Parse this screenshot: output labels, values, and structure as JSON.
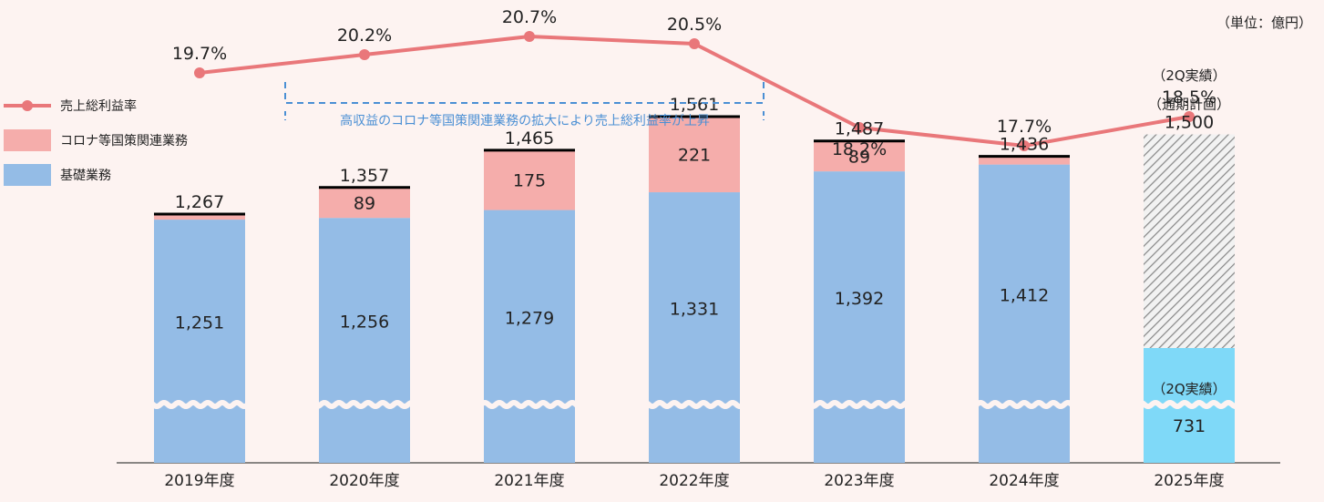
{
  "chart_data": {
    "type": "bar",
    "unit": "（単位：億円）",
    "categories": [
      "2019年度",
      "2020年度",
      "2021年度",
      "2022年度",
      "2023年度",
      "2024年度",
      "2025年度"
    ],
    "series": [
      {
        "name": "基礎業務",
        "values": [
          1251,
          1256,
          1279,
          1331,
          1392,
          1412,
          null
        ]
      },
      {
        "name": "コロナ等国策関連業務",
        "values": [
          null,
          89,
          175,
          221,
          89,
          null,
          null
        ]
      }
    ],
    "total_labels": [
      "1,267",
      "1,357",
      "1,465",
      "1,561",
      "1,487",
      "1,436",
      "1,500"
    ],
    "totals": [
      1267,
      1357,
      1465,
      1561,
      1487,
      1436,
      1500
    ],
    "base_labels": [
      "1,251",
      "1,256",
      "1,279",
      "1,331",
      "1,392",
      "1,412"
    ],
    "corona_labels": [
      "",
      "89",
      "175",
      "221",
      "89",
      "",
      ""
    ],
    "margin_line": {
      "name": "売上総利益率",
      "values": [
        19.7,
        20.2,
        20.7,
        20.5,
        18.2,
        17.7,
        18.5
      ],
      "labels": [
        "19.7%",
        "20.2%",
        "20.7%",
        "20.5%",
        "18.2%",
        "17.7%",
        "18.5%"
      ],
      "color": "#e9777a"
    },
    "fy2025": {
      "plan_label": "（通期計画）",
      "plan_value": 1500,
      "actual_label": "（2Q実績）",
      "actual_value": 731,
      "actual_value_label": "731",
      "margin_note": "（2Q実績）",
      "actual_color": "#7fd9f8"
    },
    "annotation": "高収益のコロナ等国策関連業務の拡大により売上総利益率が上昇",
    "legend": [
      {
        "name": "売上総利益率",
        "type": "line",
        "color": "#e9777a"
      },
      {
        "name": "コロナ等国策関連業務",
        "type": "box",
        "color": "#f5adab"
      },
      {
        "name": "基礎業務",
        "type": "box",
        "color": "#94bce6"
      }
    ],
    "colors": {
      "base": "#94bce6",
      "corona": "#f5adab",
      "line": "#e9777a",
      "note": "#4a8fd4",
      "background": "#fdf3f1"
    }
  }
}
